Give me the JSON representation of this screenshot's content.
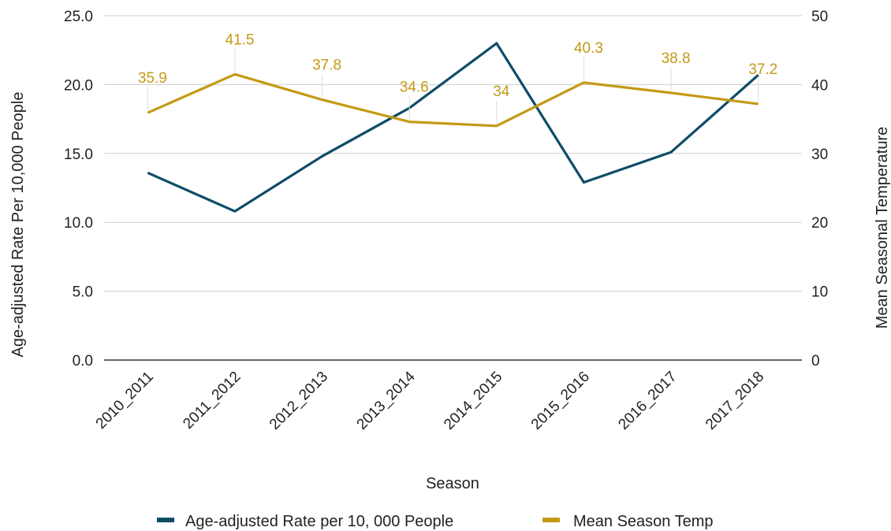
{
  "chart_data": {
    "type": "line",
    "xlabel": "Season",
    "ylabel_left": "Age-adjusted Rate Per 10,000 People",
    "ylabel_right": "Mean Seasonal Temperature",
    "categories": [
      "2010_2011",
      "2011_2012",
      "2012_2013",
      "2013_2014",
      "2014_2015",
      "2015_2016",
      "2016_2017",
      "2017_2018"
    ],
    "y_left": {
      "min": 0,
      "max": 25,
      "ticks": [
        "0.0",
        "5.0",
        "10.0",
        "15.0",
        "20.0",
        "25.0"
      ]
    },
    "y_right": {
      "min": 0,
      "max": 50,
      "ticks": [
        "0",
        "10",
        "20",
        "30",
        "40",
        "50"
      ]
    },
    "grid": true,
    "legend_position": "bottom",
    "series": [
      {
        "name": "Age-adjusted Rate per 10, 000 People",
        "axis": "left",
        "color": "#0f4c68",
        "values": [
          13.6,
          10.8,
          14.8,
          18.3,
          23.0,
          12.9,
          15.1,
          20.7
        ],
        "show_labels": false
      },
      {
        "name": "Mean Season Temp",
        "axis": "right",
        "color": "#c49a14",
        "values": [
          35.9,
          41.5,
          37.8,
          34.6,
          34,
          40.3,
          38.8,
          37.2
        ],
        "labels": [
          "35.9",
          "41.5",
          "37.8",
          "34.6",
          "34",
          "40.3",
          "38.8",
          "37.2"
        ],
        "show_labels": true
      }
    ]
  }
}
